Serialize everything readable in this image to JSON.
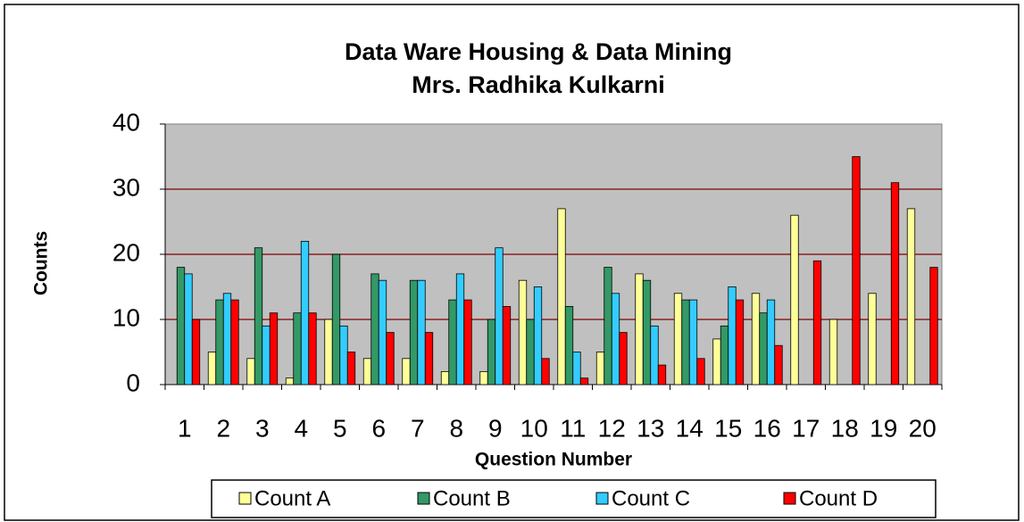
{
  "chart_data": {
    "type": "bar",
    "title": "Data Ware Housing & Data Mining",
    "subtitle": "Mrs. Radhika Kulkarni",
    "xlabel": "Question Number",
    "ylabel": "Counts",
    "categories": [
      "1",
      "2",
      "3",
      "4",
      "5",
      "6",
      "7",
      "8",
      "9",
      "10",
      "11",
      "12",
      "13",
      "14",
      "15",
      "16",
      "17",
      "18",
      "19",
      "20"
    ],
    "series": [
      {
        "name": "Count A",
        "color": "#ffff99",
        "values": [
          0,
          5,
          4,
          1,
          10,
          4,
          4,
          2,
          2,
          16,
          27,
          5,
          17,
          14,
          7,
          14,
          26,
          10,
          14,
          27
        ]
      },
      {
        "name": "Count B",
        "color": "#339966",
        "values": [
          18,
          13,
          21,
          11,
          20,
          17,
          16,
          13,
          10,
          10,
          12,
          18,
          16,
          13,
          9,
          11,
          0,
          0,
          0,
          0
        ]
      },
      {
        "name": "Count C",
        "color": "#33ccff",
        "values": [
          17,
          14,
          9,
          22,
          9,
          16,
          16,
          17,
          21,
          15,
          5,
          14,
          9,
          13,
          15,
          13,
          0,
          0,
          0,
          0
        ]
      },
      {
        "name": "Count D",
        "color": "#ff0000",
        "values": [
          10,
          13,
          11,
          11,
          5,
          8,
          8,
          13,
          12,
          4,
          1,
          8,
          3,
          4,
          13,
          6,
          19,
          35,
          31,
          18
        ]
      }
    ],
    "ylim": [
      0,
      40
    ],
    "yticks": [
      0,
      10,
      20,
      30,
      40
    ],
    "grid": true,
    "grid_color": "#800000",
    "plot_background": "#c0c0c0",
    "legend": "bottom"
  }
}
